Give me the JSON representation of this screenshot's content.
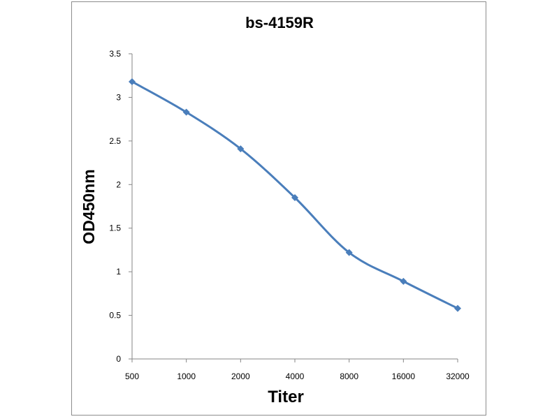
{
  "chart_data": {
    "type": "line",
    "title": "bs-4159R",
    "xlabel": "Titer",
    "ylabel": "OD450nm",
    "categories": [
      "500",
      "1000",
      "2000",
      "4000",
      "8000",
      "16000",
      "32000"
    ],
    "series": [
      {
        "values": [
          3.18,
          2.83,
          2.41,
          1.85,
          1.22,
          0.89,
          0.58
        ],
        "color": "#4a7ebb",
        "marker": "diamond"
      }
    ],
    "ylim": [
      0,
      3.5
    ],
    "yticks": [
      "0",
      "0.5",
      "1",
      "1.5",
      "2",
      "2.5",
      "3",
      "3.5"
    ],
    "grid": false,
    "legend": "none"
  }
}
